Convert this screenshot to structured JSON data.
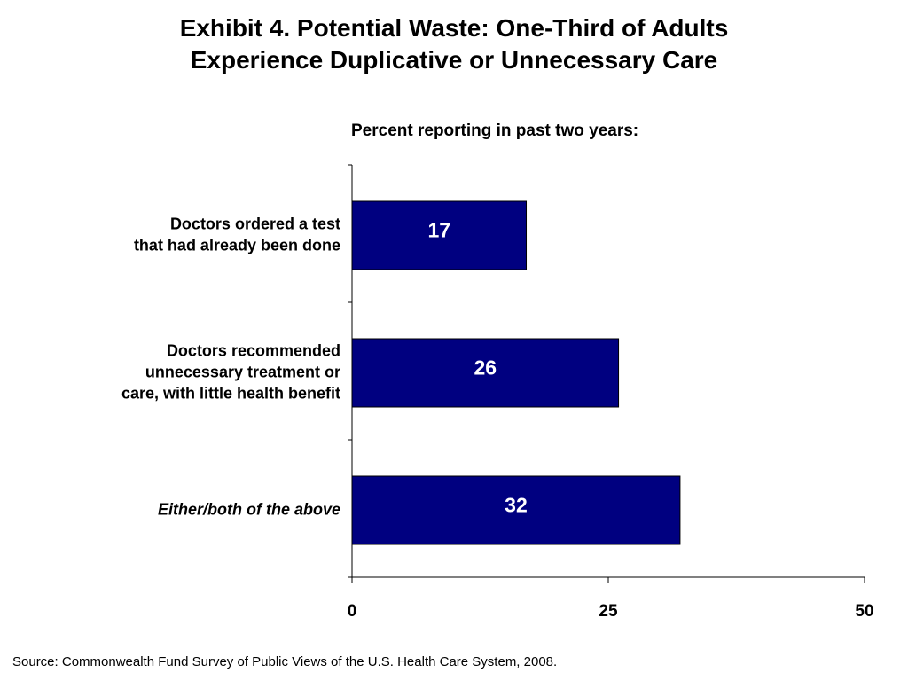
{
  "title_lines": [
    "Exhibit 4. Potential Waste: One-Third of Adults",
    "Experience Duplicative or Unnecessary Care"
  ],
  "subtitle": "Percent reporting in past two years:",
  "source": "Source: Commonwealth Fund Survey of Public Views of the U.S. Health Care System, 2008.",
  "colors": {
    "bar": "#000080",
    "bar_label": "#ffffff",
    "axis": "#000000"
  },
  "chart_data": {
    "type": "bar",
    "orientation": "horizontal",
    "categories": [
      {
        "lines": [
          "Doctors ordered a test",
          "that had already been done"
        ],
        "italic": false
      },
      {
        "lines": [
          "Doctors recommended",
          "unnecessary treatment or",
          "care, with little health benefit"
        ],
        "italic": false
      },
      {
        "lines": [
          "Either/both of the above"
        ],
        "italic": true
      }
    ],
    "values": [
      17,
      26,
      32
    ],
    "data_labels": [
      "17",
      "26",
      "32"
    ],
    "xlim": [
      0,
      50
    ],
    "x_ticks": [
      0,
      25,
      50
    ],
    "x_tick_labels": [
      "0",
      "25",
      "50"
    ],
    "grid": false,
    "legend": "none"
  }
}
